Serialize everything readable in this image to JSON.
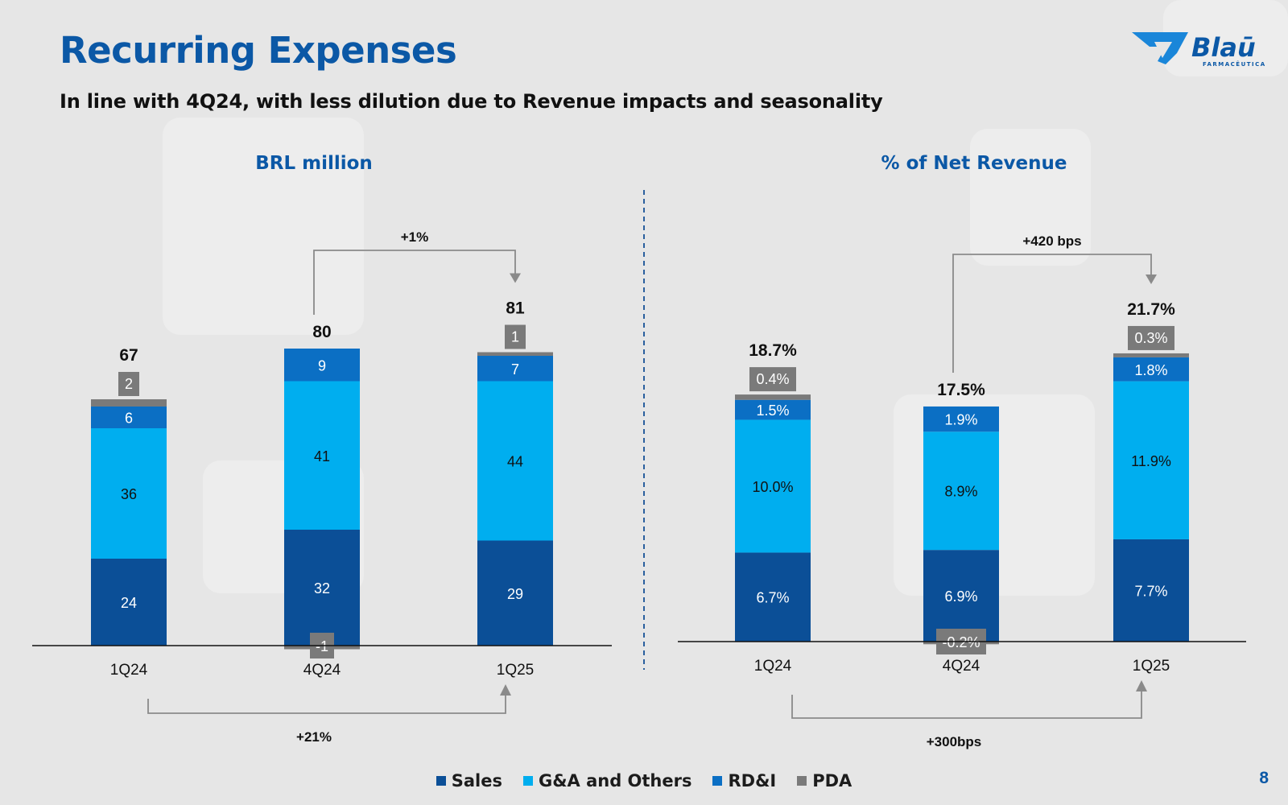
{
  "slide": {
    "title": "Recurring Expenses",
    "subtitle": "In line with 4Q24, with less dilution due to Revenue impacts and seasonality",
    "page_number": "8"
  },
  "logo": {
    "name": "Blaū",
    "tagline": "FARMACÊUTICA",
    "color": "#0b58a6",
    "accent": "#1a86d9"
  },
  "colors": {
    "Sales": "#0b4f97",
    "G&A and Others": "#00aeef",
    "RD&I": "#0b6fc4",
    "PDA": "#7a7a7a",
    "title": "#0b58a6",
    "divider": "#2a5f9e"
  },
  "legend": [
    {
      "name": "Sales",
      "label": "Sales"
    },
    {
      "name": "G&A and Others",
      "label": "G&A and Others"
    },
    {
      "name": "RD&I",
      "label": "RD&I"
    },
    {
      "name": "PDA",
      "label": "PDA"
    }
  ],
  "chart_data": [
    {
      "type": "bar",
      "stacked": true,
      "title": "BRL million",
      "categories": [
        "1Q24",
        "4Q24",
        "1Q25"
      ],
      "series": [
        {
          "name": "Sales",
          "values": [
            24,
            32,
            29
          ],
          "labels": [
            "24",
            "32",
            "29"
          ]
        },
        {
          "name": "G&A and Others",
          "values": [
            36,
            41,
            44
          ],
          "labels": [
            "36",
            "41",
            "44"
          ]
        },
        {
          "name": "RD&I",
          "values": [
            6,
            9,
            7
          ],
          "labels": [
            "6",
            "9",
            "7"
          ]
        },
        {
          "name": "PDA",
          "values": [
            2,
            -1,
            1
          ],
          "labels": [
            "2",
            "-1",
            "1"
          ]
        }
      ],
      "totals": [
        "67",
        "80",
        "81"
      ],
      "comparisons": [
        {
          "from": "4Q24",
          "to": "1Q25",
          "label": "+1%",
          "position": "top"
        },
        {
          "from": "1Q24",
          "to": "1Q25",
          "label": "+21%",
          "position": "bottom"
        }
      ]
    },
    {
      "type": "bar",
      "stacked": true,
      "title": "% of Net Revenue",
      "categories": [
        "1Q24",
        "4Q24",
        "1Q25"
      ],
      "series": [
        {
          "name": "Sales",
          "values": [
            6.7,
            6.9,
            7.7
          ],
          "labels": [
            "6.7%",
            "6.9%",
            "7.7%"
          ]
        },
        {
          "name": "G&A and Others",
          "values": [
            10.0,
            8.9,
            11.9
          ],
          "labels": [
            "10.0%",
            "8.9%",
            "11.9%"
          ]
        },
        {
          "name": "RD&I",
          "values": [
            1.5,
            1.9,
            1.8
          ],
          "labels": [
            "1.5%",
            "1.9%",
            "1.8%"
          ]
        },
        {
          "name": "PDA",
          "values": [
            0.4,
            -0.2,
            0.3
          ],
          "labels": [
            "0.4%",
            "-0.2%",
            "0.3%"
          ]
        }
      ],
      "totals": [
        "18.7%",
        "17.5%",
        "21.7%"
      ],
      "comparisons": [
        {
          "from": "4Q24",
          "to": "1Q25",
          "label": "+420 bps",
          "position": "top"
        },
        {
          "from": "1Q24",
          "to": "1Q25",
          "label": "+300bps",
          "position": "bottom"
        }
      ]
    }
  ]
}
